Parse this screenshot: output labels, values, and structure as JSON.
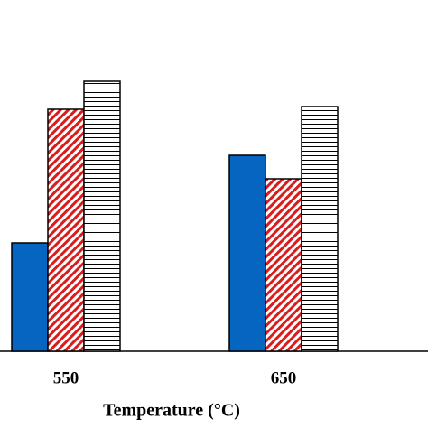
{
  "chart_data": {
    "type": "bar",
    "xlabel": "Temperature (°C)",
    "categories": [
      "550",
      "650"
    ],
    "series": [
      {
        "color": "#0565c0",
        "hatch": "none",
        "values": [
          120,
          217
        ]
      },
      {
        "color": "#d91c1c",
        "hatch": "diagonal",
        "values": [
          268,
          191
        ]
      },
      {
        "color": "#000000",
        "hatch": "horizontal",
        "values": [
          299,
          271
        ]
      }
    ],
    "ylim": [
      0,
      300
    ]
  }
}
